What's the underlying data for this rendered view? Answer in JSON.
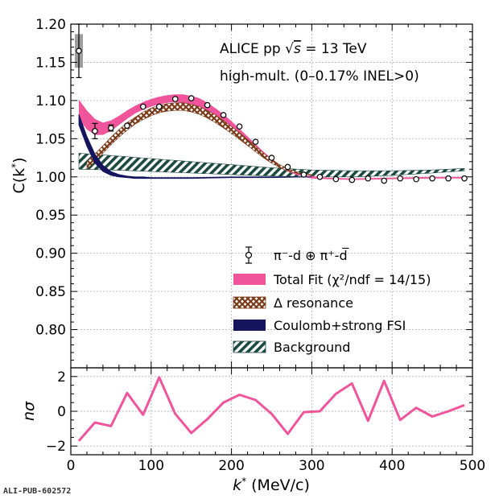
{
  "chart_data": [
    {
      "type": "scatter",
      "xlim": [
        0,
        500
      ],
      "ylim": [
        0.75,
        1.2
      ],
      "grid": true,
      "x_ticks": [
        "0",
        "100",
        "200",
        "300",
        "400",
        "500"
      ],
      "y_ticks": [
        "0.80",
        "0.85",
        "0.90",
        "0.95",
        "1.00",
        "1.05",
        "1.10",
        "1.15",
        "1.20"
      ],
      "ylabel_base": "C(k",
      "ylabel_close": ")",
      "annotation_line1_pre": "ALICE pp ",
      "annotation_line1_sqrt": "√",
      "annotation_line1_s": "s",
      "annotation_line1_post": " = 13 TeV",
      "annotation_line2": "high-mult. (0–0.17% INEL>0)",
      "legend_position": "center-right",
      "legend": [
        {
          "label": "π⁻-d ⊕ π⁺-d̅",
          "kind": "data"
        },
        {
          "label": "Total Fit (χ²/ndf = 14/15)",
          "kind": "total",
          "color": "#f0559c"
        },
        {
          "label": "Δ resonance",
          "kind": "delta",
          "color": "#7a3b1a"
        },
        {
          "label": "Coulomb+strong FSI",
          "kind": "coulomb",
          "color": "#15155e"
        },
        {
          "label": "Background",
          "kind": "background",
          "color": "#1d4a3e"
        }
      ],
      "data_points": {
        "x": [
          10,
          30,
          50,
          70,
          90,
          110,
          130,
          150,
          170,
          190,
          210,
          230,
          250,
          270,
          290,
          310,
          330,
          350,
          370,
          390,
          410,
          430,
          450,
          470,
          490
        ],
        "y": [
          1.165,
          1.06,
          1.064,
          1.067,
          1.092,
          1.092,
          1.102,
          1.103,
          1.094,
          1.081,
          1.066,
          1.046,
          1.025,
          1.013,
          1.003,
          1.0,
          0.997,
          0.996,
          0.998,
          0.995,
          0.998,
          0.997,
          0.998,
          0.998,
          0.998
        ],
        "yerr": [
          0.035,
          0.01,
          0.004,
          0.003,
          0.003,
          0.003,
          0.002,
          0.002,
          0.002,
          0.002,
          0.002,
          0.002,
          0.002,
          0.002,
          0.002,
          0.002,
          0.002,
          0.002,
          0.002,
          0.002,
          0.002,
          0.002,
          0.002,
          0.002,
          0.002
        ],
        "syst_first_point": [
          1.143,
          1.187
        ]
      },
      "total_fit_band": {
        "x": [
          10,
          20,
          30,
          40,
          50,
          60,
          70,
          80,
          90,
          100,
          110,
          120,
          130,
          140,
          150,
          160,
          170,
          180,
          190,
          200,
          210,
          220,
          230,
          240,
          250,
          260,
          270,
          280,
          290,
          300,
          320,
          350,
          400,
          450,
          490
        ],
        "low": [
          1.075,
          1.062,
          1.055,
          1.055,
          1.06,
          1.068,
          1.076,
          1.083,
          1.088,
          1.092,
          1.095,
          1.097,
          1.098,
          1.097,
          1.095,
          1.091,
          1.086,
          1.079,
          1.071,
          1.063,
          1.054,
          1.045,
          1.036,
          1.027,
          1.019,
          1.012,
          1.007,
          1.003,
          1.0,
          0.998,
          0.997,
          0.996,
          0.997,
          0.998,
          0.998
        ],
        "high": [
          1.101,
          1.087,
          1.076,
          1.071,
          1.074,
          1.08,
          1.087,
          1.093,
          1.098,
          1.102,
          1.105,
          1.107,
          1.108,
          1.108,
          1.106,
          1.103,
          1.097,
          1.09,
          1.082,
          1.073,
          1.063,
          1.053,
          1.043,
          1.033,
          1.024,
          1.016,
          1.01,
          1.005,
          1.002,
          1.001,
          0.999,
          0.998,
          0.999,
          1.0,
          1.0
        ]
      },
      "delta_band": {
        "x": [
          20,
          30,
          40,
          50,
          60,
          70,
          80,
          90,
          100,
          110,
          120,
          130,
          140,
          150,
          160,
          170,
          180,
          190,
          200,
          210,
          220,
          230,
          240,
          250,
          260,
          270,
          280,
          290,
          300
        ],
        "low": [
          1.01,
          1.02,
          1.031,
          1.042,
          1.052,
          1.061,
          1.069,
          1.075,
          1.08,
          1.084,
          1.086,
          1.087,
          1.087,
          1.085,
          1.082,
          1.077,
          1.071,
          1.064,
          1.057,
          1.049,
          1.041,
          1.033,
          1.025,
          1.018,
          1.012,
          1.008,
          1.005,
          1.003,
          1.002
        ],
        "high": [
          1.02,
          1.03,
          1.041,
          1.052,
          1.062,
          1.071,
          1.078,
          1.085,
          1.09,
          1.094,
          1.096,
          1.097,
          1.097,
          1.095,
          1.092,
          1.087,
          1.081,
          1.074,
          1.066,
          1.058,
          1.049,
          1.04,
          1.031,
          1.023,
          1.016,
          1.011,
          1.007,
          1.004,
          1.003
        ]
      },
      "coulomb_band": {
        "x": [
          10,
          20,
          30,
          40,
          50,
          60,
          70,
          80,
          90,
          100,
          150,
          200,
          250,
          300
        ],
        "low": [
          1.068,
          1.04,
          1.018,
          1.007,
          1.002,
          1.0,
          0.999,
          0.998,
          0.998,
          0.998,
          0.998,
          0.999,
          0.999,
          1.0
        ],
        "high": [
          1.082,
          1.053,
          1.03,
          1.015,
          1.007,
          1.003,
          1.001,
          1.0,
          1.0,
          0.999,
          0.999,
          1.0,
          1.0,
          1.0
        ]
      },
      "background_band": {
        "x": [
          10,
          50,
          100,
          150,
          200,
          250,
          300,
          350,
          400,
          450,
          490
        ],
        "low": [
          1.01,
          1.009,
          1.007,
          1.005,
          1.003,
          1.001,
          1.0,
          1.0,
          1.002,
          1.005,
          1.008
        ],
        "high": [
          1.031,
          1.028,
          1.024,
          1.02,
          1.016,
          1.012,
          1.009,
          1.008,
          1.008,
          1.009,
          1.011
        ]
      }
    },
    {
      "type": "line",
      "xlim": [
        0,
        500
      ],
      "ylim": [
        -2.5,
        2.5
      ],
      "grid": true,
      "x_ticks": [
        "0",
        "100",
        "200",
        "300",
        "400",
        "500"
      ],
      "y_ticks": [
        "−2",
        "0",
        "2"
      ],
      "xlabel_base": "k",
      "xlabel_unit": " (MeV/c)",
      "ylabel": "nσ",
      "series": [
        {
          "color": "#f0559c",
          "x": [
            10,
            30,
            50,
            70,
            90,
            110,
            130,
            150,
            170,
            190,
            210,
            230,
            250,
            270,
            290,
            310,
            330,
            350,
            370,
            390,
            410,
            430,
            450,
            470,
            490
          ],
          "y": [
            -1.7,
            -0.65,
            -0.85,
            1.05,
            -0.2,
            1.95,
            -0.15,
            -1.25,
            -0.45,
            0.5,
            0.95,
            0.65,
            -0.15,
            -1.3,
            -0.05,
            0.0,
            1.0,
            1.6,
            -0.55,
            1.75,
            -0.5,
            0.2,
            -0.3,
            0.0,
            0.35
          ]
        }
      ]
    }
  ],
  "footer": {
    "pub_id": "ALI-PUB-602572"
  }
}
